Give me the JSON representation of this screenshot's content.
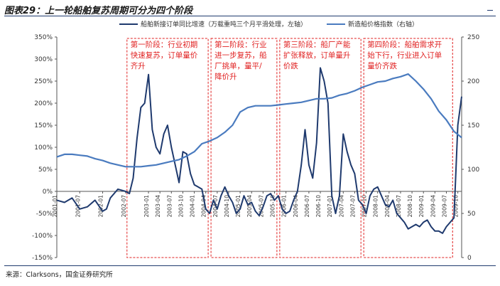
{
  "title": "图表29：上一轮船舶复苏周期可分为四个阶段",
  "source": "来源：Clarksons，国金证券研究所",
  "colors": {
    "left_series": "#1f3a6e",
    "right_series": "#4a7bbf",
    "phase_box": "#e02020",
    "axis": "#555555"
  },
  "chart_data": {
    "type": "line",
    "x_ticks": [
      "2001-01",
      "2001-07",
      "2002-01",
      "2002-07",
      "2003-01",
      "2003-04",
      "2003-07",
      "2003-10",
      "2004-01",
      "2004-04",
      "2004-07",
      "2004-10",
      "2005-01",
      "2005-04",
      "2005-07",
      "2005-10",
      "2006-01",
      "2006-04",
      "2006-07",
      "2006-10",
      "2007-01",
      "2007-04",
      "2007-07",
      "2007-10",
      "2008-01",
      "2008-04",
      "2008-07",
      "2008-10",
      "2009-01",
      "2009-04",
      "2009-07",
      "2009-10"
    ],
    "x_tick_index": [
      0,
      6,
      12,
      18,
      24,
      27,
      30,
      33,
      36,
      39,
      42,
      45,
      48,
      51,
      54,
      57,
      60,
      63,
      66,
      69,
      72,
      75,
      78,
      81,
      84,
      87,
      90,
      93,
      96,
      99,
      102,
      105
    ],
    "x_range": [
      0,
      106
    ],
    "y_left": {
      "min": -150,
      "max": 350,
      "ticks": [
        "-150%",
        "-100%",
        "-50%",
        "0%",
        "50%",
        "100%",
        "150%",
        "200%",
        "250%",
        "300%",
        "350%"
      ]
    },
    "y_right": {
      "min": 0,
      "max": 250,
      "ticks": [
        "0",
        "50",
        "100",
        "150",
        "200",
        "250"
      ]
    },
    "series": [
      {
        "name": "船舶新接订单同比增速（万载重吨三个月平滑处理，左轴）",
        "axis": "left",
        "x": [
          0,
          2,
          4,
          6,
          8,
          10,
          12,
          13,
          14,
          16,
          18,
          19,
          20,
          21,
          22,
          23,
          24,
          25,
          26,
          27,
          28,
          29,
          30,
          31,
          32,
          33,
          34,
          35,
          36,
          37,
          38,
          39,
          40,
          41,
          42,
          43,
          44,
          45,
          46,
          47,
          48,
          49,
          50,
          51,
          52,
          53,
          54,
          55,
          56,
          57,
          58,
          59,
          60,
          61,
          62,
          63,
          64,
          65,
          66,
          67,
          68,
          69,
          70,
          71,
          72,
          73,
          74,
          75,
          76,
          77,
          78,
          79,
          80,
          81,
          82,
          83,
          84,
          85,
          86,
          87,
          88,
          89,
          90,
          91,
          92,
          93,
          94,
          95,
          96,
          97,
          98,
          99,
          100,
          101,
          102,
          103,
          104,
          105,
          106
        ],
        "values": [
          -20,
          -25,
          -15,
          -40,
          -35,
          -20,
          -45,
          -40,
          -15,
          5,
          0,
          -5,
          30,
          120,
          190,
          200,
          265,
          140,
          100,
          85,
          130,
          150,
          100,
          60,
          20,
          90,
          85,
          40,
          15,
          10,
          5,
          -40,
          -50,
          -20,
          -40,
          -10,
          10,
          -10,
          -25,
          -50,
          -40,
          -10,
          -30,
          -25,
          -45,
          -55,
          -35,
          -10,
          -5,
          -20,
          -10,
          -40,
          -50,
          -45,
          -20,
          0,
          60,
          140,
          60,
          30,
          110,
          280,
          250,
          200,
          -10,
          -50,
          -10,
          130,
          90,
          60,
          40,
          -20,
          -30,
          -50,
          -10,
          5,
          10,
          -10,
          -30,
          -35,
          -20,
          -50,
          -60,
          -70,
          -85,
          -80,
          -75,
          -80,
          -70,
          -65,
          -80,
          -90,
          -90,
          -95,
          -80,
          -70,
          -60,
          150,
          215
        ]
      },
      {
        "name": "新造船价格指数（右轴）",
        "axis": "right",
        "x": [
          0,
          2,
          4,
          6,
          8,
          10,
          12,
          14,
          16,
          18,
          20,
          22,
          24,
          26,
          28,
          30,
          32,
          34,
          36,
          38,
          40,
          42,
          44,
          46,
          48,
          50,
          52,
          54,
          56,
          58,
          60,
          62,
          64,
          66,
          68,
          70,
          72,
          74,
          76,
          78,
          80,
          82,
          84,
          86,
          88,
          90,
          92,
          94,
          96,
          98,
          100,
          102,
          104,
          106
        ],
        "values": [
          114,
          117,
          117,
          116,
          115,
          112,
          110,
          107,
          105,
          103,
          103,
          103,
          104,
          105,
          107,
          109,
          111,
          115,
          120,
          129,
          132,
          136,
          142,
          150,
          165,
          170,
          172,
          172,
          172,
          173,
          174,
          175,
          176,
          178,
          180,
          180,
          181,
          184,
          186,
          189,
          193,
          196,
          199,
          200,
          203,
          205,
          208,
          200,
          191,
          180,
          166,
          156,
          143,
          136
        ]
      }
    ],
    "phases": [
      {
        "label": "第一阶段：行业初期快速复苏，订单量价齐升",
        "x_start": 18,
        "x_end": 40
      },
      {
        "label": "第二阶段：行业进一步复苏，船厂挑单，量平/降价升",
        "x_start": 40,
        "x_end": 58
      },
      {
        "label": "第三阶段：船厂产能扩张释放，订单量升价跌",
        "x_start": 58,
        "x_end": 80
      },
      {
        "label": "第四阶段：船舶需求开始下行，行业进入订单量价齐跌",
        "x_start": 80,
        "x_end": 104
      }
    ]
  }
}
